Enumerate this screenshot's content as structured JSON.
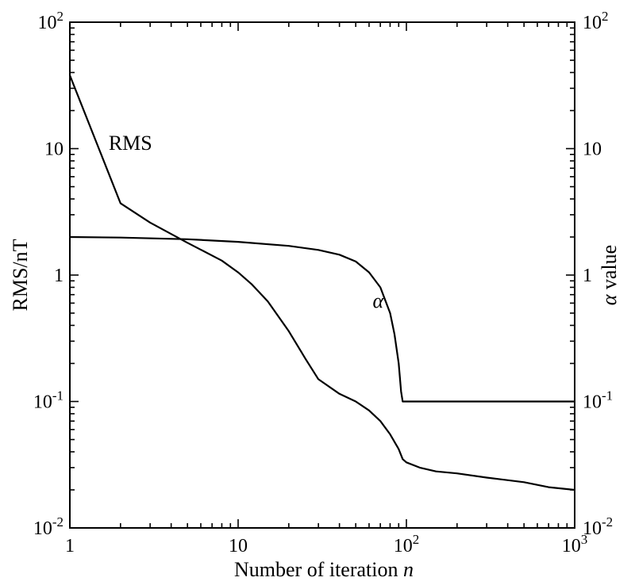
{
  "chart_data": {
    "type": "line",
    "xlabel": "Number of iteration n",
    "ylabel_left": "RMS/nT",
    "ylabel_right": "α value",
    "x_scale": "log",
    "y_scale": "log",
    "xlim": [
      1,
      1000
    ],
    "ylim": [
      0.01,
      100
    ],
    "grid": false,
    "x_ticks": [
      {
        "value": 1,
        "base": "1",
        "exp": ""
      },
      {
        "value": 10,
        "base": "10",
        "exp": ""
      },
      {
        "value": 100,
        "base": "10",
        "exp": "2"
      },
      {
        "value": 1000,
        "base": "10",
        "exp": "3"
      }
    ],
    "y_ticks": [
      {
        "value": 0.01,
        "base": "10",
        "exp": "-2"
      },
      {
        "value": 0.1,
        "base": "10",
        "exp": "-1"
      },
      {
        "value": 1,
        "base": "1",
        "exp": ""
      },
      {
        "value": 10,
        "base": "10",
        "exp": ""
      },
      {
        "value": 100,
        "base": "10",
        "exp": "2"
      }
    ],
    "series": [
      {
        "name": "RMS",
        "label_at": [
          1.7,
          11
        ],
        "x": [
          1,
          2,
          3,
          5,
          8,
          10,
          12,
          15,
          20,
          25,
          30,
          40,
          50,
          60,
          70,
          80,
          90,
          95,
          100,
          120,
          150,
          200,
          300,
          500,
          700,
          1000
        ],
        "y": [
          38,
          3.7,
          2.6,
          1.8,
          1.3,
          1.05,
          0.85,
          0.62,
          0.36,
          0.22,
          0.15,
          0.115,
          0.1,
          0.085,
          0.07,
          0.055,
          0.042,
          0.035,
          0.033,
          0.03,
          0.028,
          0.027,
          0.025,
          0.023,
          0.021,
          0.02
        ]
      },
      {
        "name": "α",
        "label_at": [
          63,
          0.62
        ],
        "x": [
          1,
          2,
          5,
          10,
          20,
          30,
          40,
          50,
          60,
          70,
          80,
          85,
          90,
          93,
          95,
          96,
          100,
          200,
          500,
          1000
        ],
        "y": [
          2.0,
          1.98,
          1.92,
          1.83,
          1.7,
          1.58,
          1.45,
          1.28,
          1.05,
          0.8,
          0.5,
          0.34,
          0.2,
          0.12,
          0.1,
          0.1,
          0.1,
          0.1,
          0.1,
          0.1
        ]
      }
    ]
  }
}
